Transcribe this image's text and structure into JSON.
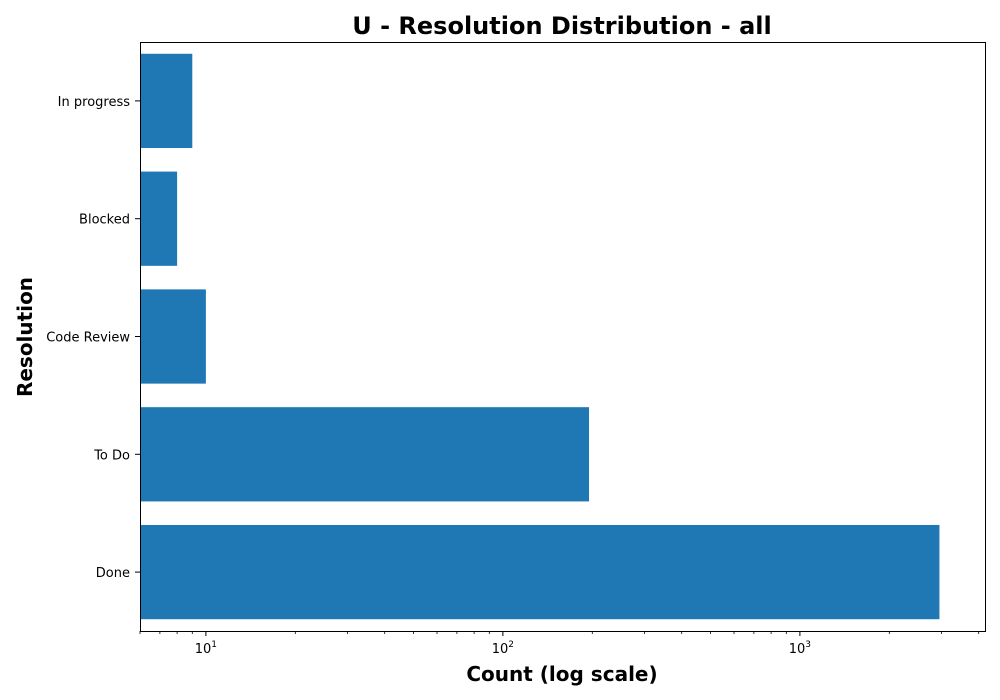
{
  "chart_data": {
    "type": "bar",
    "orientation": "horizontal",
    "title": "U - Resolution Distribution - all",
    "xlabel": "Count (log scale)",
    "ylabel": "Resolution",
    "xscale": "log",
    "xlim": [
      6,
      4200
    ],
    "categories": [
      "Done",
      "To Do",
      "Code Review",
      "Blocked",
      "In progress"
    ],
    "values": [
      2950,
      195,
      10,
      8,
      9
    ],
    "x_ticks": [
      {
        "base": "10",
        "exp": "1",
        "value": 10
      },
      {
        "base": "10",
        "exp": "2",
        "value": 100
      },
      {
        "base": "10",
        "exp": "3",
        "value": 1000
      }
    ],
    "bar_color": "#1f77b4",
    "grid": false,
    "legend": "none"
  }
}
